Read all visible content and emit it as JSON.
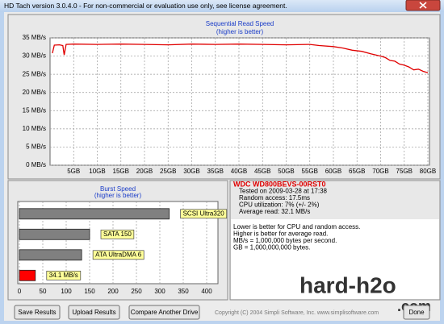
{
  "window": {
    "title": "HD Tach version 3.0.4.0  - For non-commercial or evaluation use only, see license agreement."
  },
  "chart_data": [
    {
      "type": "line",
      "title": "Sequential Read Speed",
      "subtitle": "(higher is better)",
      "color": "#e00000",
      "grid": true,
      "x": [
        0.5,
        0.9,
        2,
        2.7,
        3,
        3.4,
        5,
        10,
        15,
        20,
        25,
        30,
        35,
        40,
        45,
        50,
        55,
        57,
        60,
        62,
        64,
        66,
        68,
        70,
        71,
        72,
        73,
        74,
        75,
        76,
        77,
        78,
        79,
        80
      ],
      "values": [
        30.8,
        33.0,
        33.1,
        32.9,
        30.3,
        33.2,
        33.3,
        33.2,
        33.3,
        33.2,
        33.1,
        33.3,
        33.2,
        33.3,
        33.2,
        33.1,
        33.2,
        32.9,
        32.6,
        32.2,
        31.6,
        31.3,
        30.6,
        30.0,
        29.6,
        28.8,
        28.6,
        27.8,
        27.5,
        27.0,
        26.2,
        26.4,
        25.8,
        25.4
      ],
      "xlim": [
        0,
        80
      ],
      "ylim": [
        0,
        35
      ],
      "xticks": [
        {
          "value": 5,
          "label": "5GB"
        },
        {
          "value": 10,
          "label": "10GB"
        },
        {
          "value": 15,
          "label": "15GB"
        },
        {
          "value": 20,
          "label": "20GB"
        },
        {
          "value": 25,
          "label": "25GB"
        },
        {
          "value": 30,
          "label": "30GB"
        },
        {
          "value": 35,
          "label": "35GB"
        },
        {
          "value": 40,
          "label": "40GB"
        },
        {
          "value": 45,
          "label": "45GB"
        },
        {
          "value": 50,
          "label": "50GB"
        },
        {
          "value": 55,
          "label": "55GB"
        },
        {
          "value": 60,
          "label": "60GB"
        },
        {
          "value": 65,
          "label": "65GB"
        },
        {
          "value": 70,
          "label": "70GB"
        },
        {
          "value": 75,
          "label": "75GB"
        },
        {
          "value": 80,
          "label": "80GB"
        }
      ],
      "yticks": [
        {
          "value": 0,
          "label": "0 MB/s"
        },
        {
          "value": 5,
          "label": "5 MB/s"
        },
        {
          "value": 10,
          "label": "10 MB/s"
        },
        {
          "value": 15,
          "label": "15 MB/s"
        },
        {
          "value": 20,
          "label": "20 MB/s"
        },
        {
          "value": 25,
          "label": "25 MB/s"
        },
        {
          "value": 30,
          "label": "30 MB/s"
        },
        {
          "value": 35,
          "label": "35 MB/s"
        }
      ]
    },
    {
      "type": "hbar",
      "title": "Burst Speed",
      "subtitle": "(higher is better)",
      "grid": true,
      "categories": [
        "SCSI Ultra320",
        "SATA 150",
        "ATA UltraDMA 6",
        null
      ],
      "values": [
        320,
        150,
        133,
        34.1
      ],
      "value_labels": [
        null,
        null,
        null,
        "34.1 MB/s"
      ],
      "colors": [
        "#808080",
        "#808080",
        "#808080",
        "#ff0000"
      ],
      "xlim": [
        0,
        400
      ],
      "xticks": [
        0,
        50,
        100,
        150,
        200,
        250,
        300,
        350,
        400
      ]
    }
  ],
  "drive": {
    "model": "WDC WD800BEVS-00RST0",
    "details": [
      "Tested on 2009-03-28 at 17:38",
      "Random access: 17.5ms",
      "CPU utilization: 7% (+/- 2%)",
      "Average read: 32.1 MB/s"
    ],
    "notes": [
      "Lower is better for CPU and random access.",
      "Higher is better for average read.",
      "MB/s = 1,000,000 bytes per second.",
      "GB = 1,000,000,000 bytes."
    ]
  },
  "watermark": {
    "main": "hard-h2o",
    "sub": ".com"
  },
  "buttons": [
    "Save Results",
    "Upload Results",
    "Compare Another Drive"
  ],
  "copyright": "Copyright (C) 2004 Simpli Software, Inc. www.simplisoftware.com",
  "done": "Done"
}
